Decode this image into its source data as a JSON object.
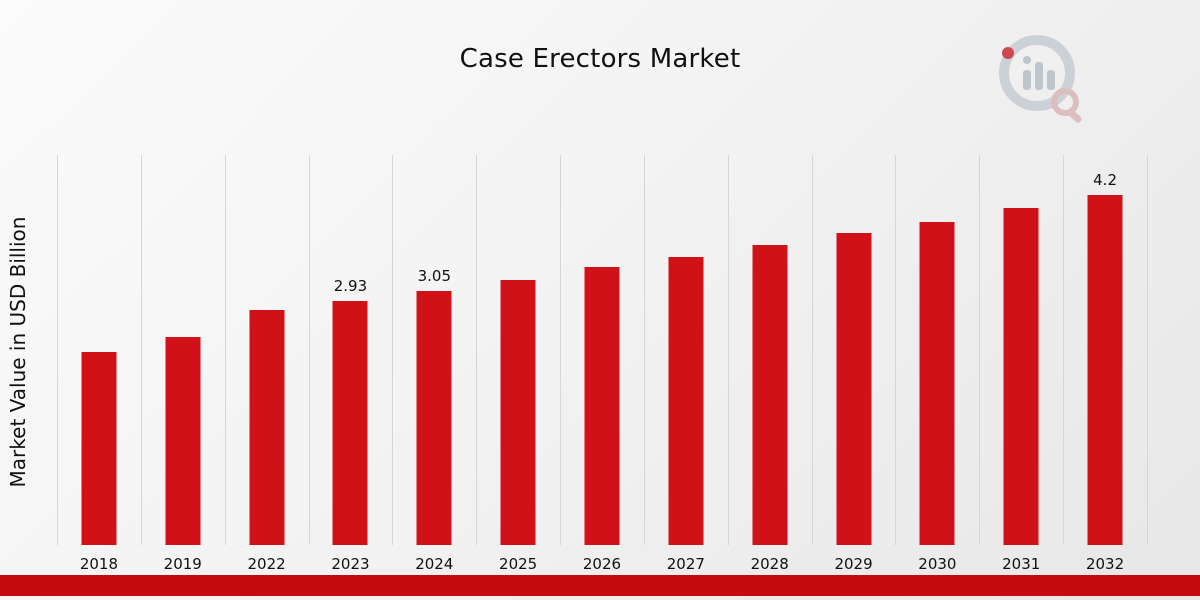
{
  "title": "Case Erectors Market",
  "ylabel": "Market Value in USD Billion",
  "colors": {
    "bar": "#d01117",
    "ribbon": "#c60b0e",
    "gridline": "#d6d6d6",
    "background_start": "#fbfbfb",
    "background_end": "#e7e7e7",
    "text": "#111111",
    "logo_gray": "#c9ced6",
    "logo_red": "#c8373d"
  },
  "logo_name": "market-research-future-watermark",
  "chart_data": {
    "type": "bar",
    "title": "Case Erectors Market",
    "xlabel": "",
    "ylabel": "Market Value in USD Billion",
    "ylim": [
      0,
      4.68
    ],
    "grid": "vertical-only",
    "legend": "none",
    "bar_color": "#d01117",
    "categories": [
      "2018",
      "2019",
      "2022",
      "2023",
      "2024",
      "2025",
      "2026",
      "2027",
      "2028",
      "2029",
      "2030",
      "2031",
      "2032"
    ],
    "values": [
      2.32,
      2.5,
      2.82,
      2.93,
      3.05,
      3.18,
      3.33,
      3.46,
      3.6,
      3.74,
      3.88,
      4.04,
      4.2
    ],
    "data_labels": [
      {
        "category": "2023",
        "label": "2.93"
      },
      {
        "category": "2024",
        "label": "3.05"
      },
      {
        "category": "2032",
        "label": "4.2"
      }
    ]
  }
}
